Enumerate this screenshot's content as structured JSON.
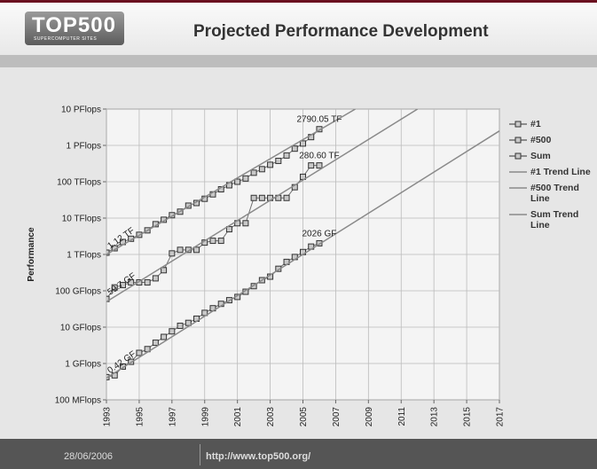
{
  "header": {
    "logo": "TOP500",
    "logo_sub": "SUPERCOMPUTER SITES"
  },
  "footer": {
    "date": "28/06/2006",
    "url": "http://www.top500.org/"
  },
  "chart_data": {
    "type": "line",
    "title": "Projected Performance Development",
    "y_label": "Performance",
    "yscale": "log",
    "ylim": [
      0.1,
      10000000
    ],
    "yticks": [
      {
        "value": 0.1,
        "label": "100 MFlops"
      },
      {
        "value": 1,
        "label": "1 GFlops"
      },
      {
        "value": 10,
        "label": "10 GFlops"
      },
      {
        "value": 100,
        "label": "100 GFlops"
      },
      {
        "value": 1000,
        "label": "1 TFlops"
      },
      {
        "value": 10000,
        "label": "10 TFlops"
      },
      {
        "value": 100000,
        "label": "100 TFlops"
      },
      {
        "value": 1000000,
        "label": "1 PFlops"
      },
      {
        "value": 10000000,
        "label": "10 PFlops"
      }
    ],
    "xlim": [
      1993,
      2017
    ],
    "xticks": [
      1993,
      1995,
      1997,
      1999,
      2001,
      2003,
      2005,
      2007,
      2009,
      2011,
      2013,
      2015,
      2017
    ],
    "grid": true,
    "legend": "right",
    "series": [
      {
        "name": "#1",
        "color": "#6e6e6e",
        "marker": "square",
        "x": [
          1993,
          1993.5,
          1994,
          1994.5,
          1995,
          1995.5,
          1996,
          1996.5,
          1997,
          1997.5,
          1998,
          1998.5,
          1999,
          1999.5,
          2000,
          2000.5,
          2001,
          2001.5,
          2002,
          2002.5,
          2003,
          2003.5,
          2004,
          2004.5,
          2005,
          2005.5,
          2006
        ],
        "values": [
          59.7,
          124,
          143.4,
          170,
          170,
          170,
          220.4,
          368.2,
          1068,
          1338,
          1338,
          1338,
          2121,
          2379,
          2379,
          4938,
          7226,
          7226,
          35860,
          35860,
          35860,
          35860,
          35860,
          70720,
          136800,
          280600,
          280600
        ],
        "value_labels": [
          "59.7 GF",
          null,
          null,
          null,
          null,
          null,
          null,
          null,
          null,
          null,
          null,
          null,
          null,
          null,
          null,
          null,
          null,
          null,
          null,
          null,
          null,
          null,
          null,
          null,
          null,
          null,
          "280.60 TF"
        ]
      },
      {
        "name": "#500",
        "color": "#6e6e6e",
        "marker": "square",
        "x": [
          1993,
          1993.5,
          1994,
          1994.5,
          1995,
          1995.5,
          1996,
          1996.5,
          1997,
          1997.5,
          1998,
          1998.5,
          1999,
          1999.5,
          2000,
          2000.5,
          2001,
          2001.5,
          2002,
          2002.5,
          2003,
          2003.5,
          2004,
          2004.5,
          2005,
          2005.5,
          2006
        ],
        "values": [
          0.422,
          0.472,
          0.822,
          1.114,
          1.96,
          2.489,
          3.73,
          5.387,
          7.67,
          10.9,
          13.1,
          17.1,
          24.7,
          33.1,
          43.8,
          55.1,
          67.8,
          94.3,
          134.3,
          196,
          245,
          403,
          624,
          850,
          1166,
          1646,
          2026
        ],
        "value_labels": [
          "0.42 GF",
          null,
          null,
          null,
          null,
          null,
          null,
          null,
          null,
          null,
          null,
          null,
          null,
          null,
          null,
          null,
          null,
          null,
          null,
          null,
          null,
          null,
          null,
          null,
          null,
          null,
          "2026 GF"
        ]
      },
      {
        "name": "Sum",
        "color": "#6e6e6e",
        "marker": "square",
        "x": [
          1993,
          1993.5,
          1994,
          1994.5,
          1995,
          1995.5,
          1996,
          1996.5,
          1997,
          1997.5,
          1998,
          1998.5,
          1999,
          1999.5,
          2000,
          2000.5,
          2001,
          2001.5,
          2002,
          2002.5,
          2003,
          2003.5,
          2004,
          2004.5,
          2005,
          2005.5,
          2006
        ],
        "values": [
          1120,
          1480,
          2200,
          2700,
          3470,
          4600,
          6800,
          9000,
          12000,
          15000,
          22000,
          26000,
          34000,
          45000,
          62000,
          80000,
          100000,
          123000,
          177000,
          222000,
          293000,
          375000,
          528000,
          813000,
          1127000,
          1690000,
          2790050
        ],
        "value_labels": [
          "1.12 TF",
          null,
          null,
          null,
          null,
          null,
          null,
          null,
          null,
          null,
          null,
          null,
          null,
          null,
          null,
          null,
          null,
          null,
          null,
          null,
          null,
          null,
          null,
          null,
          null,
          null,
          "2790.05 TF"
        ]
      },
      {
        "name": "#1 Trend Line",
        "color": "#8a8a8a",
        "marker": "none",
        "x": [
          1993,
          2012
        ],
        "values": [
          50,
          10000000
        ]
      },
      {
        "name": "#500 Trend Line",
        "color": "#8a8a8a",
        "marker": "none",
        "x": [
          1993,
          2017
        ],
        "values": [
          0.4,
          2500000
        ]
      },
      {
        "name": "Sum Trend Line",
        "color": "#8a8a8a",
        "marker": "none",
        "x": [
          1993,
          2008.2
        ],
        "values": [
          1000,
          10000000
        ]
      }
    ]
  }
}
